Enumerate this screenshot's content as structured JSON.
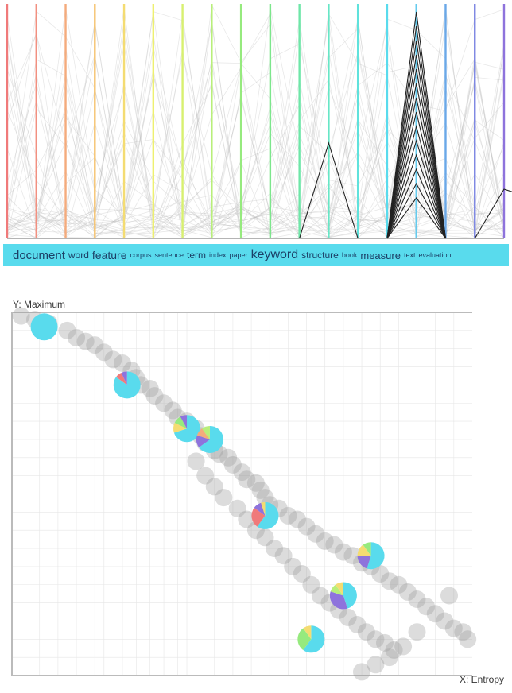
{
  "chart_data": [
    {
      "type": "parallel-coordinates",
      "axes": [
        {
          "term": "document",
          "color": "#f07a7a"
        },
        {
          "term": "word",
          "color": "#f29080"
        },
        {
          "term": "feature",
          "color": "#f4ab7c"
        },
        {
          "term": "corpus",
          "color": "#f6c36e"
        },
        {
          "term": "sentence",
          "color": "#f4dc72"
        },
        {
          "term": "term",
          "color": "#eef070"
        },
        {
          "term": "index",
          "color": "#d8f070"
        },
        {
          "term": "paper",
          "color": "#b8ef7a"
        },
        {
          "term": "keyword",
          "color": "#96ea7e"
        },
        {
          "term": "structure",
          "color": "#7de68c"
        },
        {
          "term": "book",
          "color": "#6fe6a8"
        },
        {
          "term": "measure",
          "color": "#67e6c6"
        },
        {
          "term": "text",
          "color": "#5fe2dc"
        },
        {
          "term": "evaluation",
          "color": "#59dbed"
        },
        {
          "term": "",
          "color": "#64cbee"
        },
        {
          "term": "",
          "color": "#6aa8e8"
        },
        {
          "term": "",
          "color": "#7b85e2"
        },
        {
          "term": "",
          "color": "#8e73dc"
        }
      ],
      "terms": [
        {
          "text": "document",
          "size": 15
        },
        {
          "text": "word",
          "size": 12
        },
        {
          "text": "feature",
          "size": 14
        },
        {
          "text": "corpus",
          "size": 9
        },
        {
          "text": "sentence",
          "size": 9
        },
        {
          "text": "term",
          "size": 12
        },
        {
          "text": "index",
          "size": 9
        },
        {
          "text": "paper",
          "size": 9
        },
        {
          "text": "keyword",
          "size": 16
        },
        {
          "text": "structure",
          "size": 12
        },
        {
          "text": "book",
          "size": 9
        },
        {
          "text": "measure",
          "size": 13
        },
        {
          "text": "text",
          "size": 9
        },
        {
          "text": "evaluation",
          "size": 9
        }
      ],
      "highlight_color": "#59dbed"
    },
    {
      "type": "scatter",
      "xlabel": "X: Entropy",
      "ylabel": "Y: Maximum",
      "xlim": [
        0,
        1
      ],
      "ylim": [
        0,
        1
      ],
      "grid": true,
      "points": [
        [
          0.02,
          0.99
        ],
        [
          0.05,
          0.98
        ],
        [
          0.08,
          0.97
        ],
        [
          0.12,
          0.95
        ],
        [
          0.14,
          0.93
        ],
        [
          0.16,
          0.92
        ],
        [
          0.18,
          0.91
        ],
        [
          0.2,
          0.89
        ],
        [
          0.22,
          0.87
        ],
        [
          0.24,
          0.86
        ],
        [
          0.26,
          0.84
        ],
        [
          0.27,
          0.82
        ],
        [
          0.28,
          0.8
        ],
        [
          0.3,
          0.79
        ],
        [
          0.31,
          0.77
        ],
        [
          0.33,
          0.75
        ],
        [
          0.35,
          0.73
        ],
        [
          0.36,
          0.71
        ],
        [
          0.38,
          0.7
        ],
        [
          0.4,
          0.68
        ],
        [
          0.41,
          0.66
        ],
        [
          0.42,
          0.64
        ],
        [
          0.44,
          0.62
        ],
        [
          0.45,
          0.61
        ],
        [
          0.47,
          0.6
        ],
        [
          0.48,
          0.58
        ],
        [
          0.5,
          0.56
        ],
        [
          0.51,
          0.54
        ],
        [
          0.53,
          0.53
        ],
        [
          0.54,
          0.51
        ],
        [
          0.55,
          0.49
        ],
        [
          0.56,
          0.47
        ],
        [
          0.58,
          0.46
        ],
        [
          0.6,
          0.44
        ],
        [
          0.62,
          0.43
        ],
        [
          0.64,
          0.41
        ],
        [
          0.66,
          0.39
        ],
        [
          0.68,
          0.37
        ],
        [
          0.7,
          0.36
        ],
        [
          0.72,
          0.34
        ],
        [
          0.74,
          0.33
        ],
        [
          0.76,
          0.31
        ],
        [
          0.78,
          0.3
        ],
        [
          0.8,
          0.28
        ],
        [
          0.82,
          0.26
        ],
        [
          0.84,
          0.25
        ],
        [
          0.86,
          0.23
        ],
        [
          0.88,
          0.21
        ],
        [
          0.9,
          0.19
        ],
        [
          0.92,
          0.17
        ],
        [
          0.94,
          0.15
        ],
        [
          0.96,
          0.13
        ],
        [
          0.98,
          0.12
        ],
        [
          0.99,
          0.1
        ],
        [
          0.95,
          0.22
        ],
        [
          0.88,
          0.12
        ],
        [
          0.85,
          0.08
        ],
        [
          0.82,
          0.05
        ],
        [
          0.79,
          0.03
        ],
        [
          0.76,
          0.01
        ],
        [
          0.4,
          0.59
        ],
        [
          0.42,
          0.55
        ],
        [
          0.44,
          0.52
        ],
        [
          0.46,
          0.49
        ],
        [
          0.49,
          0.46
        ],
        [
          0.51,
          0.43
        ],
        [
          0.53,
          0.4
        ],
        [
          0.55,
          0.38
        ],
        [
          0.57,
          0.35
        ],
        [
          0.59,
          0.33
        ],
        [
          0.61,
          0.3
        ],
        [
          0.63,
          0.28
        ],
        [
          0.65,
          0.25
        ],
        [
          0.67,
          0.22
        ],
        [
          0.69,
          0.2
        ],
        [
          0.71,
          0.18
        ],
        [
          0.73,
          0.16
        ],
        [
          0.75,
          0.14
        ],
        [
          0.77,
          0.12
        ],
        [
          0.79,
          0.1
        ],
        [
          0.81,
          0.09
        ],
        [
          0.83,
          0.07
        ]
      ],
      "pies": [
        {
          "x": 0.07,
          "y": 0.96,
          "slices": [
            {
              "value": 1.0,
              "color": "#59dbed"
            }
          ]
        },
        {
          "x": 0.25,
          "y": 0.8,
          "slices": [
            {
              "value": 0.85,
              "color": "#59dbed"
            },
            {
              "value": 0.08,
              "color": "#f07a7a"
            },
            {
              "value": 0.07,
              "color": "#8e73dc"
            }
          ]
        },
        {
          "x": 0.38,
          "y": 0.68,
          "slices": [
            {
              "value": 0.7,
              "color": "#59dbed"
            },
            {
              "value": 0.12,
              "color": "#f4dc72"
            },
            {
              "value": 0.1,
              "color": "#96ea7e"
            },
            {
              "value": 0.08,
              "color": "#8e73dc"
            }
          ]
        },
        {
          "x": 0.43,
          "y": 0.65,
          "slices": [
            {
              "value": 0.65,
              "color": "#59dbed"
            },
            {
              "value": 0.15,
              "color": "#8e73dc"
            },
            {
              "value": 0.1,
              "color": "#f4ab7c"
            },
            {
              "value": 0.1,
              "color": "#b8ef7a"
            }
          ]
        },
        {
          "x": 0.55,
          "y": 0.44,
          "slices": [
            {
              "value": 0.6,
              "color": "#59dbed"
            },
            {
              "value": 0.25,
              "color": "#f07a7a"
            },
            {
              "value": 0.1,
              "color": "#8e73dc"
            },
            {
              "value": 0.05,
              "color": "#f4dc72"
            }
          ]
        },
        {
          "x": 0.78,
          "y": 0.33,
          "slices": [
            {
              "value": 0.55,
              "color": "#59dbed"
            },
            {
              "value": 0.2,
              "color": "#8e73dc"
            },
            {
              "value": 0.15,
              "color": "#f4dc72"
            },
            {
              "value": 0.1,
              "color": "#96ea7e"
            }
          ]
        },
        {
          "x": 0.72,
          "y": 0.22,
          "slices": [
            {
              "value": 0.45,
              "color": "#59dbed"
            },
            {
              "value": 0.35,
              "color": "#8e73dc"
            },
            {
              "value": 0.1,
              "color": "#b8ef7a"
            },
            {
              "value": 0.1,
              "color": "#f4dc72"
            }
          ]
        },
        {
          "x": 0.65,
          "y": 0.1,
          "slices": [
            {
              "value": 0.6,
              "color": "#59dbed"
            },
            {
              "value": 0.3,
              "color": "#96ea7e"
            },
            {
              "value": 0.1,
              "color": "#f4dc72"
            }
          ]
        }
      ]
    }
  ]
}
